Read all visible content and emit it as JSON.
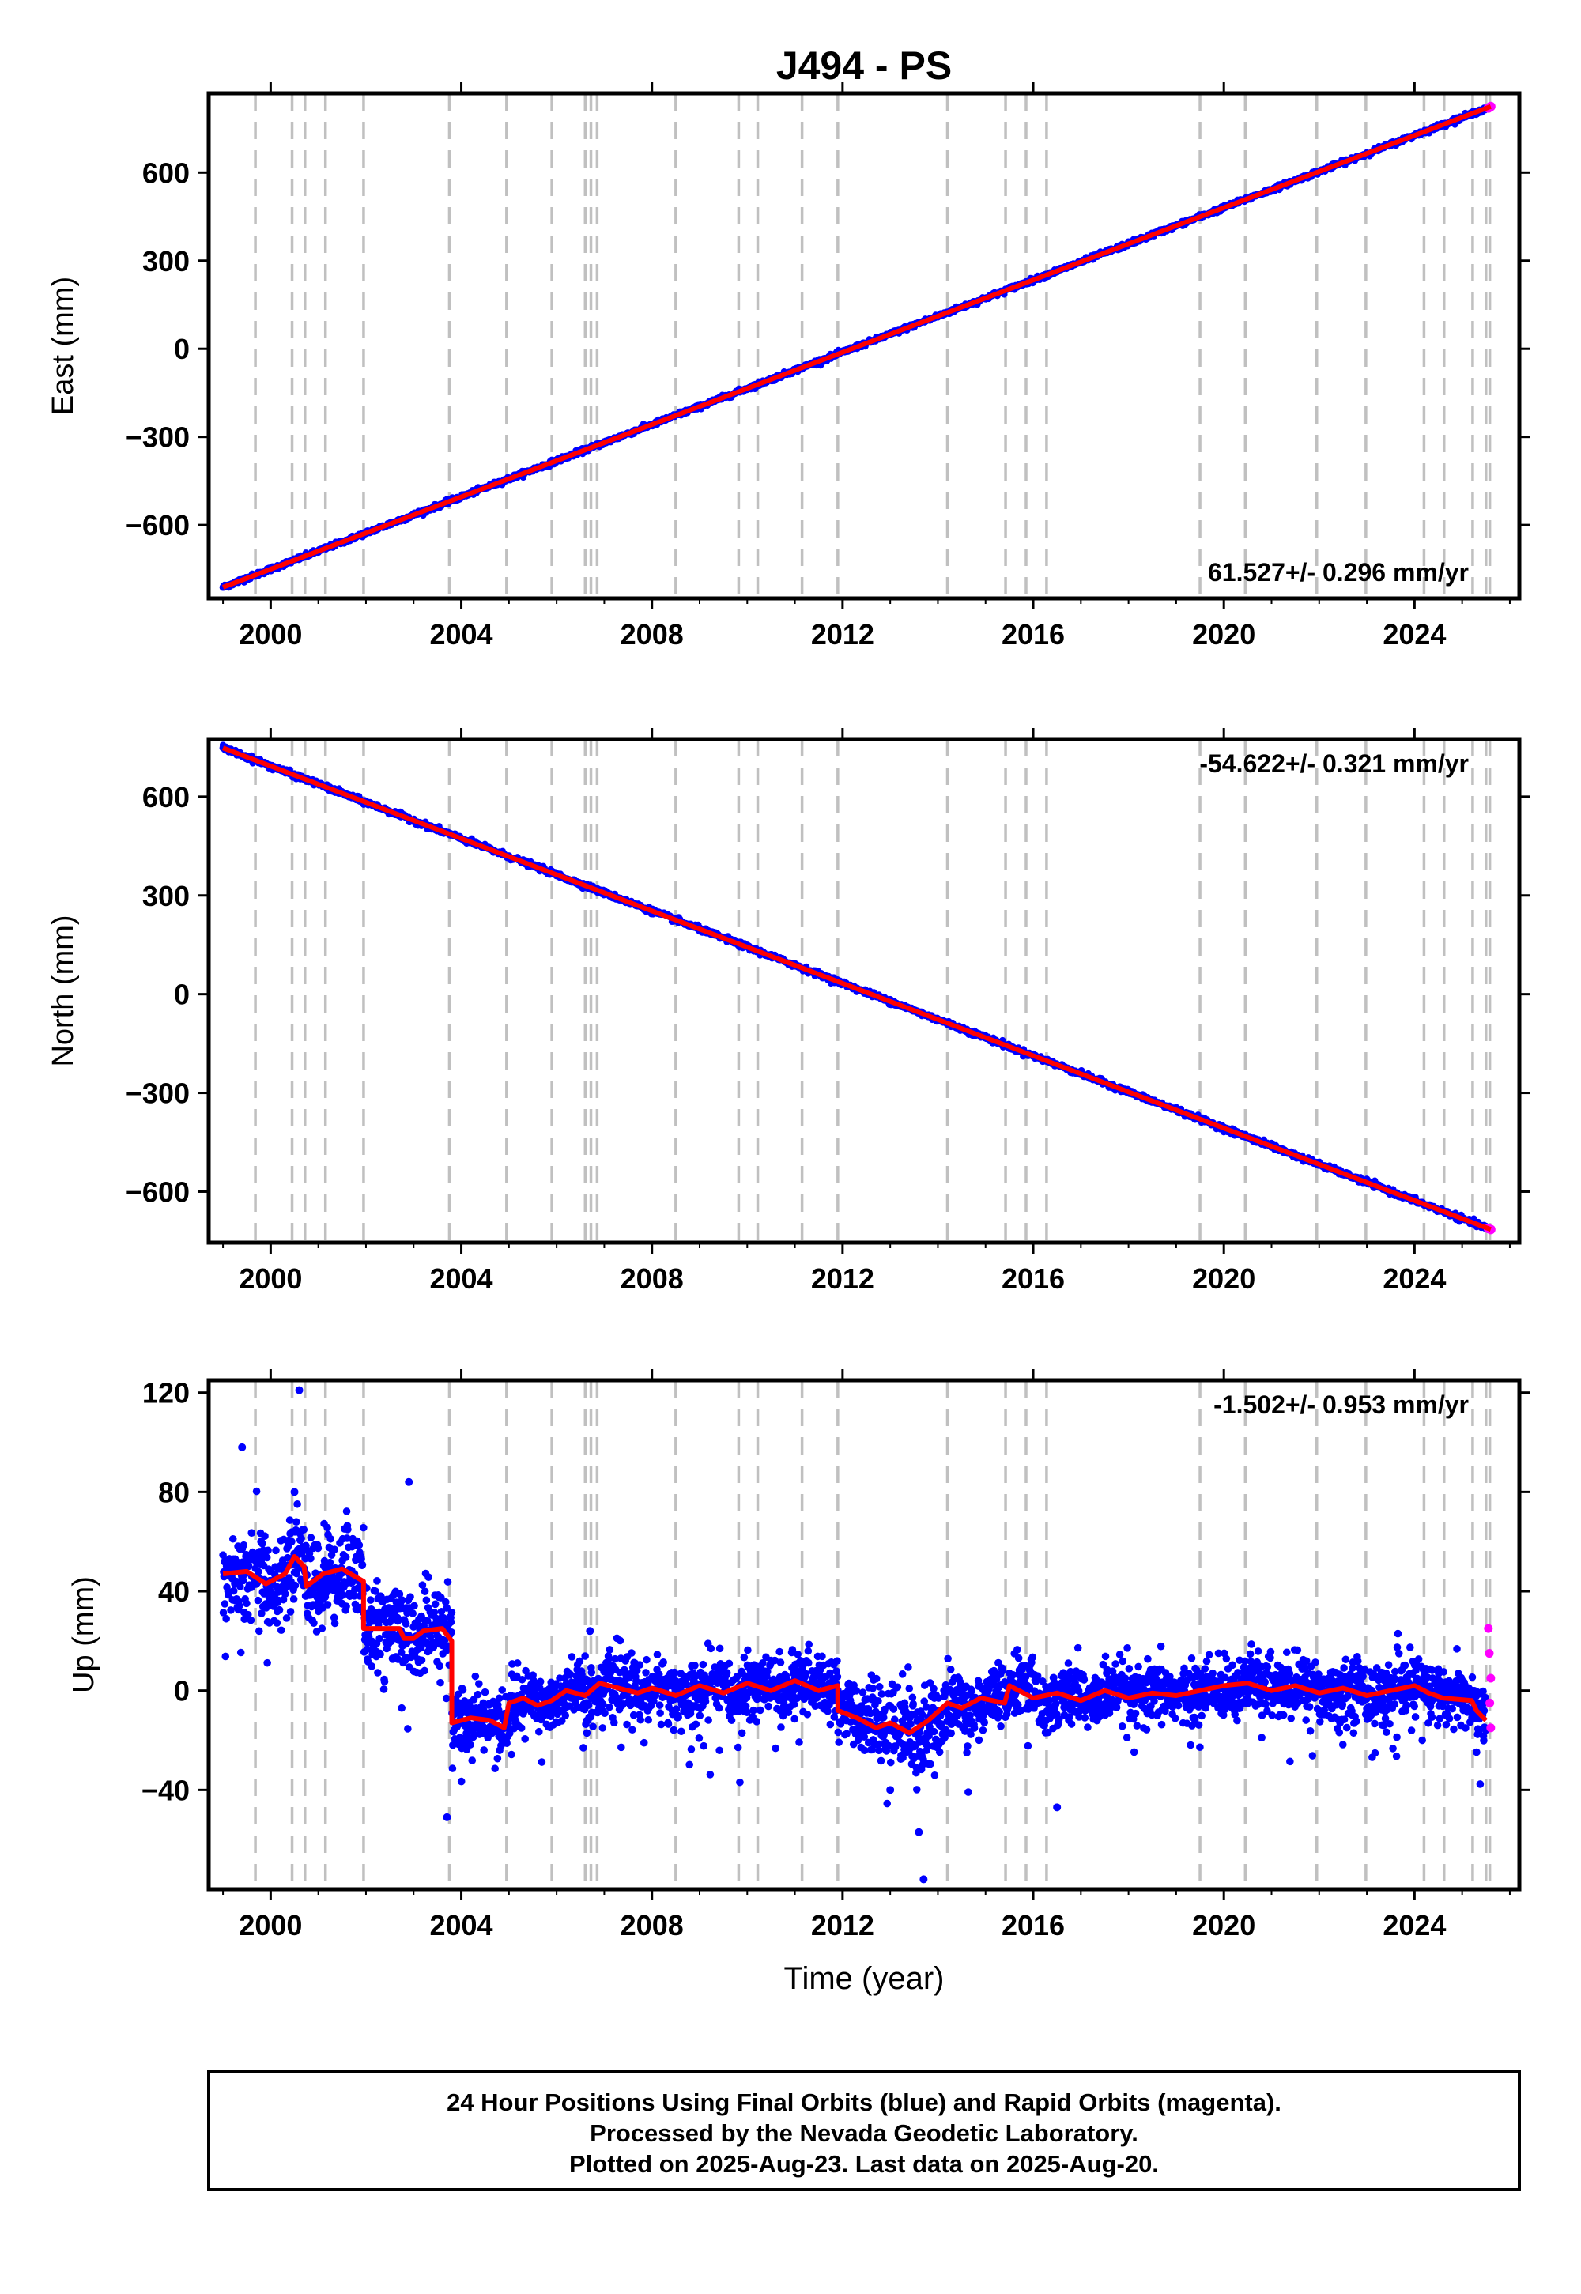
{
  "title": "J494 - PS",
  "x_axis_label": "Time (year)",
  "footer_lines": [
    "24 Hour Positions Using Final Orbits (blue) and Rapid Orbits (magenta).",
    "Processed by the Nevada Geodetic Laboratory.",
    "Plotted on 2025-Aug-23. Last data on 2025-Aug-20."
  ],
  "colors": {
    "final_orbits": "#0000ff",
    "rapid_orbits": "#ff00ff",
    "model_fit": "#ff0000",
    "event_lines": "#c0c0c0",
    "frame": "#000000"
  },
  "chart_data": [
    {
      "type": "scatter",
      "component": "east",
      "ylabel": "East (mm)",
      "xlim": [
        1998.7,
        2026.2
      ],
      "ylim": [
        -850,
        870
      ],
      "x_ticks": [
        "2000",
        "2004",
        "2008",
        "2012",
        "2016",
        "2020",
        "2024"
      ],
      "y_ticks": [
        "600",
        "300",
        "0",
        "−300",
        "−600"
      ],
      "y_tick_values": [
        600,
        300,
        0,
        -300,
        -600
      ],
      "rate_label": "61.527+/- 0.296 mm/yr",
      "model_line": {
        "start": [
          1999.0,
          -812
        ],
        "end": [
          2025.6,
          825
        ]
      },
      "final_orbit_points": [
        [
          1999.0,
          -812
        ],
        [
          2001.0,
          -689
        ],
        [
          2003.0,
          -566
        ],
        [
          2005.0,
          -443
        ],
        [
          2007.0,
          -320
        ],
        [
          2009.0,
          -197
        ],
        [
          2011.0,
          -74
        ],
        [
          2013.0,
          49
        ],
        [
          2015.0,
          172
        ],
        [
          2017.0,
          295
        ],
        [
          2019.0,
          418
        ],
        [
          2021.0,
          541
        ],
        [
          2023.0,
          664
        ],
        [
          2025.2,
          800
        ]
      ],
      "rapid_orbit_points": [
        [
          2025.55,
          820
        ],
        [
          2025.6,
          825
        ]
      ]
    },
    {
      "type": "scatter",
      "component": "north",
      "ylabel": "North (mm)",
      "xlim": [
        1998.7,
        2026.2
      ],
      "ylim": [
        -755,
        775
      ],
      "x_ticks": [
        "2000",
        "2004",
        "2008",
        "2012",
        "2016",
        "2020",
        "2024"
      ],
      "y_ticks": [
        "600",
        "300",
        "0",
        "−300",
        "−600"
      ],
      "y_tick_values": [
        600,
        300,
        0,
        -300,
        -600
      ],
      "rate_label": "-54.622+/- 0.321 mm/yr",
      "model_line": {
        "start": [
          1999.0,
          748
        ],
        "end": [
          2025.6,
          -715
        ]
      },
      "final_orbit_points": [
        [
          1999.0,
          748
        ],
        [
          2001.0,
          639
        ],
        [
          2003.0,
          530
        ],
        [
          2005.0,
          420
        ],
        [
          2007.0,
          311
        ],
        [
          2009.0,
          202
        ],
        [
          2011.0,
          93
        ],
        [
          2013.0,
          -16
        ],
        [
          2015.0,
          -126
        ],
        [
          2017.0,
          -235
        ],
        [
          2019.0,
          -344
        ],
        [
          2021.0,
          -453
        ],
        [
          2023.0,
          -562
        ],
        [
          2025.2,
          -693
        ]
      ],
      "rapid_orbit_points": [
        [
          2025.55,
          -712
        ],
        [
          2025.6,
          -715
        ]
      ]
    },
    {
      "type": "scatter",
      "component": "up",
      "ylabel": "Up (mm)",
      "xlim": [
        1998.7,
        2026.2
      ],
      "ylim": [
        -80,
        125
      ],
      "x_ticks": [
        "2000",
        "2004",
        "2008",
        "2012",
        "2016",
        "2020",
        "2024"
      ],
      "y_ticks": [
        "120",
        "80",
        "40",
        "0",
        "−40"
      ],
      "y_tick_values": [
        120,
        80,
        40,
        0,
        -40
      ],
      "rate_label": "-1.502+/- 0.953 mm/yr",
      "final_orbit_points": [
        [
          1999.4,
          98
        ],
        [
          2000.6,
          121
        ],
        [
          2000.5,
          80
        ],
        [
          2002.9,
          84
        ],
        [
          2003.7,
          -51
        ],
        [
          2013.6,
          -57
        ],
        [
          2013.7,
          -76
        ],
        [
          2006.7,
          24
        ],
        [
          1999.8,
          60
        ],
        [
          2001.5,
          35
        ],
        [
          2013.0,
          -40
        ],
        [
          2016.5,
          -47
        ]
      ],
      "rapid_orbit_points": [
        [
          2025.55,
          25
        ],
        [
          2025.57,
          15
        ],
        [
          2025.6,
          5
        ],
        [
          2025.58,
          -5
        ],
        [
          2025.6,
          -15
        ]
      ],
      "model_step_line": [
        [
          1999.0,
          47
        ],
        [
          1999.5,
          48
        ],
        [
          1999.9,
          43
        ],
        [
          2000.3,
          47
        ],
        [
          2000.5,
          54
        ],
        [
          2000.7,
          50
        ],
        [
          2000.75,
          42
        ],
        [
          2001.1,
          47
        ],
        [
          2001.5,
          49
        ],
        [
          2001.95,
          44
        ],
        [
          2001.95,
          25
        ],
        [
          2002.7,
          25
        ],
        [
          2002.8,
          21
        ],
        [
          2003.0,
          21
        ],
        [
          2003.2,
          24
        ],
        [
          2003.6,
          25
        ],
        [
          2003.8,
          20
        ],
        [
          2003.8,
          -13
        ],
        [
          2004.2,
          -11
        ],
        [
          2004.6,
          -12
        ],
        [
          2004.9,
          -15
        ],
        [
          2005.0,
          -5
        ],
        [
          2005.3,
          -3
        ],
        [
          2005.6,
          -6
        ],
        [
          2005.9,
          -4
        ],
        [
          2006.2,
          0
        ],
        [
          2006.6,
          -2
        ],
        [
          2006.9,
          3
        ],
        [
          2007.3,
          1
        ],
        [
          2007.7,
          -1
        ],
        [
          2008.0,
          1
        ],
        [
          2008.5,
          -2
        ],
        [
          2009.0,
          2
        ],
        [
          2009.5,
          -1
        ],
        [
          2010.0,
          3
        ],
        [
          2010.5,
          0
        ],
        [
          2011.0,
          4
        ],
        [
          2011.5,
          0
        ],
        [
          2011.9,
          2
        ],
        [
          2011.9,
          -8
        ],
        [
          2012.3,
          -11
        ],
        [
          2012.7,
          -15
        ],
        [
          2013.0,
          -13
        ],
        [
          2013.4,
          -17
        ],
        [
          2013.8,
          -12
        ],
        [
          2014.2,
          -5
        ],
        [
          2014.5,
          -7
        ],
        [
          2014.9,
          -3
        ],
        [
          2015.4,
          -5
        ],
        [
          2015.5,
          2
        ],
        [
          2016.0,
          -3
        ],
        [
          2016.5,
          -1
        ],
        [
          2017.0,
          -4
        ],
        [
          2017.5,
          0
        ],
        [
          2018.0,
          -3
        ],
        [
          2018.5,
          -1
        ],
        [
          2019.0,
          -2
        ],
        [
          2019.5,
          0
        ],
        [
          2020.0,
          2
        ],
        [
          2020.5,
          3
        ],
        [
          2021.0,
          0
        ],
        [
          2021.5,
          2
        ],
        [
          2022.0,
          -1
        ],
        [
          2022.5,
          1
        ],
        [
          2023.0,
          -2
        ],
        [
          2023.5,
          0
        ],
        [
          2024.0,
          2
        ],
        [
          2024.3,
          -1
        ],
        [
          2024.6,
          -3
        ],
        [
          2025.2,
          -4
        ],
        [
          2025.3,
          -8
        ],
        [
          2025.5,
          -12
        ]
      ]
    }
  ],
  "event_line_years": [
    1999.68,
    2000.45,
    2000.72,
    2001.15,
    2001.95,
    2003.75,
    2004.95,
    2005.9,
    2006.6,
    2006.72,
    2006.85,
    2008.5,
    2009.82,
    2010.22,
    2011.15,
    2011.9,
    2014.2,
    2015.42,
    2015.85,
    2016.28,
    2019.5,
    2020.45,
    2021.95,
    2022.98,
    2024.2,
    2024.62,
    2025.22,
    2025.5,
    2025.58
  ]
}
